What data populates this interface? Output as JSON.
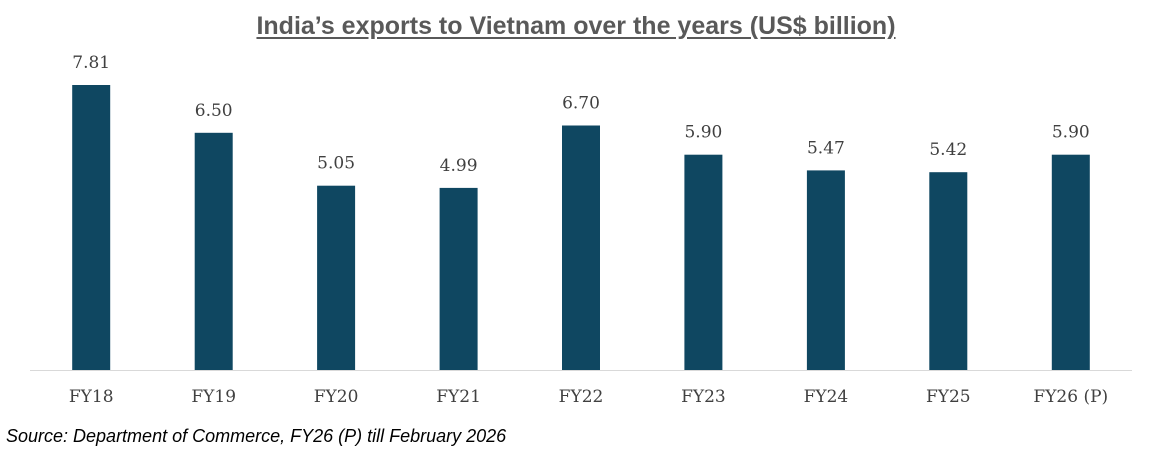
{
  "chart_data": {
    "type": "bar",
    "title": "India’s exports to Vietnam over the years (US$ billion)",
    "categories": [
      "FY18",
      "FY19",
      "FY20",
      "FY21",
      "FY22",
      "FY23",
      "FY24",
      "FY25",
      "FY26 (P)"
    ],
    "series": [
      {
        "values": [
          7.81,
          6.5,
          5.05,
          4.99,
          6.7,
          5.9,
          5.47,
          5.42,
          5.9
        ]
      }
    ],
    "value_labels": [
      "7.81",
      "6.50",
      "5.05",
      "4.99",
      "6.70",
      "5.90",
      "5.47",
      "5.42",
      "5.90"
    ],
    "xlabel": "",
    "ylabel": "",
    "ylim": [
      0,
      7.81
    ],
    "grid": false,
    "legend": "none",
    "colors": {
      "bar": "#0F4761",
      "title": "#595959",
      "axis": "#D9D9D9",
      "label": "#404040"
    }
  },
  "source_note": "Source: Department of Commerce, FY26 (P) till February 2026"
}
